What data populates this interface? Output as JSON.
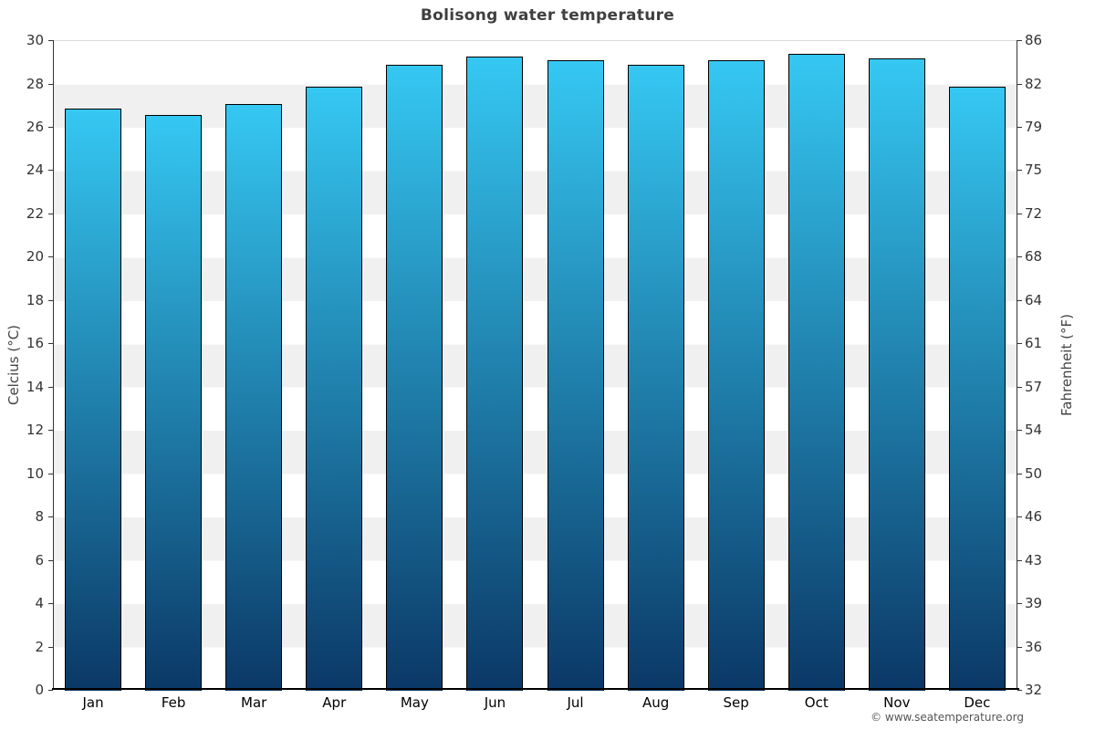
{
  "chart_data": {
    "type": "bar",
    "title": "Bolisong water temperature",
    "categories": [
      "Jan",
      "Feb",
      "Mar",
      "Apr",
      "May",
      "Jun",
      "Jul",
      "Aug",
      "Sep",
      "Oct",
      "Nov",
      "Dec"
    ],
    "values": [
      26.9,
      26.6,
      27.1,
      27.9,
      28.9,
      29.3,
      29.1,
      28.9,
      29.1,
      29.4,
      29.2,
      27.9
    ],
    "ylabel_left": "Celcius (°C)",
    "ylabel_right": "Fahrenheit (°F)",
    "ylim": [
      0,
      30
    ],
    "yticks_celsius": [
      30,
      28,
      26,
      24,
      22,
      20,
      18,
      16,
      14,
      12,
      10,
      8,
      6,
      4,
      2,
      0
    ],
    "yticks_fahrenheit": [
      86,
      82,
      79,
      75,
      72,
      68,
      64,
      61,
      57,
      54,
      50,
      46,
      43,
      39,
      36,
      32
    ],
    "xlabel": "",
    "legend": "none",
    "grid": "striped-bands",
    "stripe_color": "#f0f0f0",
    "bar_gradient_top": "#35c8f2",
    "bar_gradient_bottom": "#0b3866",
    "bar_border_color": "#000000"
  },
  "footer": {
    "copyright": "© www.seatemperature.org"
  }
}
